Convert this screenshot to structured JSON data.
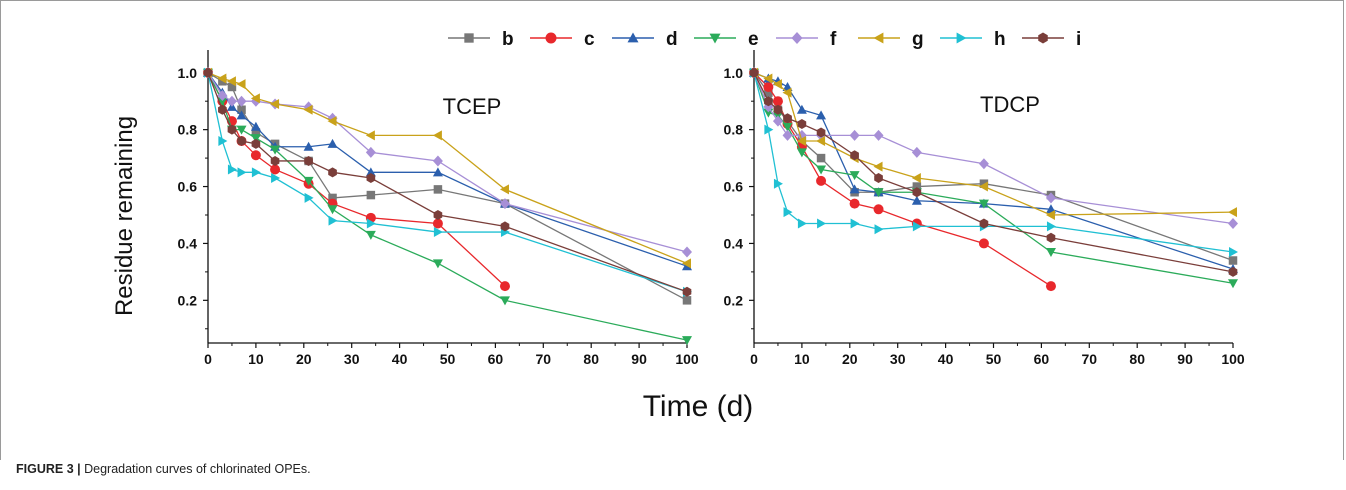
{
  "caption": {
    "label": "FIGURE 3 |",
    "text": " Degradation curves of chlorinated OPEs."
  },
  "figure": {
    "ylabel": "Residue remaining",
    "xlabel": "Time (d)"
  },
  "legend": {
    "placement": "top-center",
    "entries": [
      {
        "name": "b",
        "color": "#777777",
        "marker": "square"
      },
      {
        "name": "c",
        "color": "#e8282c",
        "marker": "circle"
      },
      {
        "name": "d",
        "color": "#2b5fad",
        "marker": "triangle-up"
      },
      {
        "name": "e",
        "color": "#2bab5a",
        "marker": "triangle-down"
      },
      {
        "name": "f",
        "color": "#a78fd6",
        "marker": "diamond"
      },
      {
        "name": "g",
        "color": "#c9a21a",
        "marker": "triangle-left"
      },
      {
        "name": "h",
        "color": "#20c0d3",
        "marker": "triangle-right"
      },
      {
        "name": "i",
        "color": "#7a3e3a",
        "marker": "hexagon"
      }
    ]
  },
  "chart_data": [
    {
      "type": "line",
      "title": "TCEP",
      "xlabel": "Time (d)",
      "ylabel": "Residue remaining",
      "xlim": [
        0,
        100
      ],
      "ylim": [
        0.05,
        1.08
      ],
      "xticks": [
        "0",
        "10",
        "20",
        "30",
        "40",
        "50",
        "60",
        "70",
        "80",
        "90",
        "100"
      ],
      "yticks": [
        "0.2",
        "0.4",
        "0.6",
        "0.8",
        "1.0"
      ],
      "grid": false,
      "series": [
        {
          "name": "b",
          "x": [
            0,
            3,
            5,
            7,
            10,
            14,
            21,
            26,
            34,
            48,
            62,
            100
          ],
          "y": [
            1.0,
            0.97,
            0.95,
            0.87,
            0.79,
            0.75,
            0.69,
            0.56,
            0.57,
            0.59,
            0.54,
            0.2
          ]
        },
        {
          "name": "c",
          "x": [
            0,
            3,
            5,
            7,
            10,
            14,
            21,
            26,
            34,
            48,
            62
          ],
          "y": [
            1.0,
            0.9,
            0.83,
            0.76,
            0.71,
            0.66,
            0.61,
            0.54,
            0.49,
            0.47,
            0.25
          ]
        },
        {
          "name": "d",
          "x": [
            0,
            3,
            5,
            7,
            10,
            14,
            21,
            26,
            34,
            48,
            62,
            100
          ],
          "y": [
            1.0,
            0.93,
            0.88,
            0.85,
            0.81,
            0.74,
            0.74,
            0.75,
            0.65,
            0.65,
            0.54,
            0.32
          ]
        },
        {
          "name": "e",
          "x": [
            0,
            3,
            5,
            7,
            10,
            14,
            21,
            26,
            34,
            48,
            62,
            100
          ],
          "y": [
            1.0,
            0.9,
            0.8,
            0.8,
            0.77,
            0.73,
            0.62,
            0.52,
            0.43,
            0.33,
            0.2,
            0.06
          ]
        },
        {
          "name": "f",
          "x": [
            0,
            3,
            5,
            7,
            10,
            14,
            21,
            26,
            34,
            48,
            62,
            100
          ],
          "y": [
            1.0,
            0.92,
            0.9,
            0.9,
            0.9,
            0.89,
            0.88,
            0.84,
            0.72,
            0.69,
            0.54,
            0.37
          ]
        },
        {
          "name": "g",
          "x": [
            0,
            3,
            5,
            7,
            10,
            14,
            21,
            26,
            34,
            48,
            62,
            100
          ],
          "y": [
            1.0,
            0.98,
            0.97,
            0.96,
            0.91,
            0.89,
            0.87,
            0.83,
            0.78,
            0.78,
            0.59,
            0.33
          ]
        },
        {
          "name": "h",
          "x": [
            0,
            3,
            5,
            7,
            10,
            14,
            21,
            26,
            34,
            48,
            62,
            100
          ],
          "y": [
            1.0,
            0.76,
            0.66,
            0.65,
            0.65,
            0.63,
            0.56,
            0.48,
            0.47,
            0.44,
            0.44,
            0.23
          ]
        },
        {
          "name": "i",
          "x": [
            0,
            3,
            5,
            7,
            10,
            14,
            21,
            26,
            34,
            48,
            62,
            100
          ],
          "y": [
            1.0,
            0.87,
            0.8,
            0.76,
            0.75,
            0.69,
            0.69,
            0.65,
            0.63,
            0.5,
            0.46,
            0.23
          ]
        }
      ]
    },
    {
      "type": "line",
      "title": "TDCP",
      "xlabel": "Time (d)",
      "ylabel": "Residue remaining",
      "xlim": [
        0,
        100
      ],
      "ylim": [
        0.05,
        1.08
      ],
      "xticks": [
        "0",
        "10",
        "20",
        "30",
        "40",
        "50",
        "60",
        "70",
        "80",
        "90",
        "100"
      ],
      "yticks": [
        "0.2",
        "0.4",
        "0.6",
        "0.8",
        "1.0"
      ],
      "grid": false,
      "series": [
        {
          "name": "b",
          "x": [
            0,
            3,
            5,
            7,
            10,
            14,
            21,
            26,
            34,
            48,
            62,
            100
          ],
          "y": [
            1.0,
            0.93,
            0.87,
            0.83,
            0.76,
            0.7,
            0.58,
            0.58,
            0.6,
            0.61,
            0.57,
            0.34
          ]
        },
        {
          "name": "c",
          "x": [
            0,
            3,
            5,
            7,
            10,
            14,
            21,
            26,
            34,
            48,
            62
          ],
          "y": [
            1.0,
            0.95,
            0.9,
            0.82,
            0.74,
            0.62,
            0.54,
            0.52,
            0.47,
            0.4,
            0.25
          ]
        },
        {
          "name": "d",
          "x": [
            0,
            3,
            5,
            7,
            10,
            14,
            21,
            26,
            34,
            48,
            62,
            100
          ],
          "y": [
            1.0,
            0.98,
            0.97,
            0.95,
            0.87,
            0.85,
            0.59,
            0.58,
            0.55,
            0.54,
            0.52,
            0.31
          ]
        },
        {
          "name": "e",
          "x": [
            0,
            3,
            5,
            7,
            10,
            14,
            21,
            26,
            34,
            48,
            62,
            100
          ],
          "y": [
            1.0,
            0.86,
            0.85,
            0.81,
            0.72,
            0.66,
            0.64,
            0.58,
            0.58,
            0.54,
            0.37,
            0.26
          ]
        },
        {
          "name": "f",
          "x": [
            0,
            3,
            5,
            7,
            10,
            14,
            21,
            26,
            34,
            48,
            62,
            100
          ],
          "y": [
            1.0,
            0.88,
            0.83,
            0.78,
            0.78,
            0.78,
            0.78,
            0.78,
            0.72,
            0.68,
            0.56,
            0.47
          ]
        },
        {
          "name": "g",
          "x": [
            0,
            3,
            5,
            7,
            10,
            14,
            21,
            26,
            34,
            48,
            62,
            100
          ],
          "y": [
            1.0,
            0.98,
            0.96,
            0.93,
            0.76,
            0.76,
            0.7,
            0.67,
            0.63,
            0.6,
            0.5,
            0.51
          ]
        },
        {
          "name": "h",
          "x": [
            0,
            3,
            5,
            7,
            10,
            14,
            21,
            26,
            34,
            48,
            62,
            100
          ],
          "y": [
            1.0,
            0.8,
            0.61,
            0.51,
            0.47,
            0.47,
            0.47,
            0.45,
            0.46,
            0.46,
            0.46,
            0.37
          ]
        },
        {
          "name": "i",
          "x": [
            0,
            3,
            5,
            7,
            10,
            14,
            21,
            26,
            34,
            48,
            62,
            100
          ],
          "y": [
            1.0,
            0.9,
            0.87,
            0.84,
            0.82,
            0.79,
            0.71,
            0.63,
            0.58,
            0.47,
            0.42,
            0.3
          ]
        }
      ]
    }
  ]
}
